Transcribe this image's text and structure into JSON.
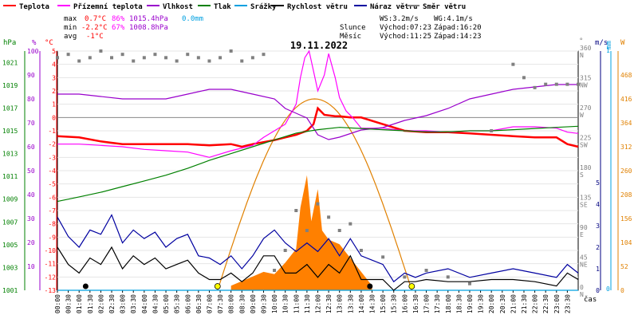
{
  "legend": [
    {
      "label": "Teplota",
      "color": "#ff0000"
    },
    {
      "label": "Přízemní teplota",
      "color": "#ff00ff"
    },
    {
      "label": "Vlhkost",
      "color": "#9900cc"
    },
    {
      "label": "Tlak",
      "color": "#008000"
    },
    {
      "label": "Srážky",
      "color": "#00a0e0"
    },
    {
      "label": "Rychlost větru",
      "color": "#000000"
    },
    {
      "label": "Náraz větru",
      "color": "#0000a0"
    },
    {
      "label": "Směr větru",
      "color": "#808080"
    }
  ],
  "stats": {
    "max_label": "max",
    "max_temp": "0.7°C",
    "max_hum": "86%",
    "max_press": "1015.4hPa",
    "max_rain": "0.0mm",
    "min_label": "min",
    "min_temp": "-2.2°C",
    "min_hum": "67%",
    "min_press": "1008.8hPa",
    "avg_label": "avg",
    "avg_temp": "-1°C"
  },
  "wind_info": {
    "ws": "WS:3.2m/s",
    "wg": "WG:4.1m/s",
    "sun_label": "Slunce",
    "sunrise": "Východ:07:23",
    "sunset": "Západ:16:20",
    "moon_label": "Měsíc",
    "moonrise": "Východ:11:25",
    "moonset": "Západ:14:23"
  },
  "date": "19.11.2022",
  "axis_units": {
    "hpa": "hPa",
    "pct": "%",
    "degc": "°C",
    "deg": "°",
    "ms": "m/s",
    "mm": "mm",
    "w": "W",
    "cas": "čas"
  },
  "chart_data": {
    "type": "line",
    "title": "19.11.2022",
    "xlabel": "čas",
    "x_ticks": [
      "00:00",
      "00:30",
      "01:00",
      "01:30",
      "02:00",
      "02:30",
      "03:00",
      "03:30",
      "04:00",
      "04:30",
      "05:00",
      "05:30",
      "06:00",
      "06:30",
      "07:00",
      "07:30",
      "08:00",
      "08:30",
      "09:00",
      "09:30",
      "10:00",
      "10:30",
      "11:00",
      "11:30",
      "12:00",
      "12:30",
      "13:00",
      "13:30",
      "14:00",
      "14:30",
      "15:00",
      "15:30",
      "16:00",
      "16:30",
      "17:00",
      "17:30",
      "18:00",
      "18:30",
      "19:00",
      "19:30",
      "20:00",
      "20:30",
      "21:00",
      "21:30",
      "22:00",
      "22:30",
      "23:00",
      "23:30"
    ],
    "axes": {
      "pressure_hpa": {
        "ticks": [
          "1001",
          "1003",
          "1005",
          "1007",
          "1009",
          "1011",
          "1013",
          "1015",
          "1017",
          "1019",
          "1021"
        ],
        "range": [
          1001,
          1022
        ]
      },
      "humidity_pct": {
        "ticks": [
          "10",
          "20",
          "30",
          "40",
          "50",
          "60",
          "70",
          "80",
          "90",
          "100"
        ],
        "range": [
          10,
          100
        ]
      },
      "temperature_c": {
        "ticks": [
          "-13",
          "-12",
          "-11",
          "-10",
          "-9",
          "-8",
          "-7",
          "-6",
          "-5",
          "-4",
          "-3",
          "-2",
          "-1",
          "0",
          "1",
          "2",
          "3",
          "4",
          "5"
        ],
        "range": [
          -13,
          5
        ]
      },
      "wind_dir_deg": {
        "ticks": [
          "0",
          "45",
          "90",
          "135",
          "180",
          "225",
          "270",
          "315",
          "360"
        ],
        "labels": [
          "N",
          "NE",
          "E",
          "SE",
          "S",
          "SW",
          "W",
          "NW",
          "N"
        ]
      },
      "wind_ms": {
        "ticks": [
          "0",
          "1",
          "2",
          "3",
          "4",
          "5"
        ]
      },
      "rain_mm": {
        "ticks": [
          "0",
          "1"
        ]
      },
      "solar_w": {
        "ticks": [
          "0",
          "52",
          "104",
          "156",
          "208",
          "260",
          "312",
          "364",
          "416",
          "468"
        ]
      }
    },
    "series": [
      {
        "name": "Teplota",
        "unit": "°C",
        "color": "#ff0000",
        "x": [
          0,
          1,
          2,
          3,
          4,
          5,
          6,
          7,
          8,
          8.5,
          9,
          10,
          10.5,
          11,
          11.5,
          11.8,
          12,
          12.3,
          12.8,
          13,
          13.5,
          14,
          15,
          16,
          17,
          18,
          19,
          20,
          21,
          22,
          23,
          23.5,
          24
        ],
        "y": [
          -1.4,
          -1.5,
          -1.8,
          -2,
          -2,
          -2,
          -2,
          -2.1,
          -2,
          -2.2,
          -2,
          -1.7,
          -1.5,
          -1.3,
          -1,
          -0.5,
          0.7,
          0.2,
          0.1,
          0.1,
          0,
          0,
          -0.5,
          -1,
          -1.1,
          -1.1,
          -1.2,
          -1.3,
          -1.4,
          -1.5,
          -1.5,
          -2,
          -2.2
        ]
      },
      {
        "name": "Přízemní teplota",
        "unit": "°C",
        "color": "#ff00ff",
        "x": [
          0,
          1,
          2,
          3,
          4,
          5,
          6,
          7,
          8,
          9,
          9.5,
          10,
          10.5,
          11,
          11.2,
          11.4,
          11.6,
          11.8,
          12,
          12.3,
          12.5,
          12.8,
          13,
          13.3,
          13.6,
          14,
          15,
          16,
          17,
          18,
          19,
          20,
          21,
          22,
          23,
          23.5,
          24
        ],
        "y": [
          -2,
          -2,
          -2.1,
          -2.2,
          -2.4,
          -2.5,
          -2.6,
          -3,
          -2.5,
          -2.1,
          -1.5,
          -1,
          -0.5,
          1,
          3,
          4.5,
          5,
          3.5,
          2,
          3.2,
          4.8,
          3,
          1.5,
          0.5,
          0,
          -0.8,
          -0.8,
          -1,
          -1,
          -1.1,
          -1,
          -1,
          -0.7,
          -0.7,
          -0.8,
          -1.1,
          -1.2
        ]
      },
      {
        "name": "Vlhkost",
        "unit": "%",
        "color": "#9900cc",
        "x": [
          0,
          1,
          2,
          3,
          4,
          5,
          6,
          7,
          8,
          9,
          10,
          10.5,
          11,
          11.5,
          12,
          12.5,
          13,
          14,
          15,
          16,
          17,
          18,
          19,
          20,
          21,
          22,
          23,
          24
        ],
        "y": [
          82,
          82,
          81,
          80,
          80,
          80,
          82,
          84,
          84,
          82,
          80,
          76,
          74,
          72,
          65,
          63,
          64,
          67,
          68,
          71,
          73,
          76,
          80,
          82,
          84,
          85,
          86,
          86
        ]
      },
      {
        "name": "Tlak",
        "unit": "hPa",
        "color": "#008000",
        "x": [
          0,
          1,
          2,
          3,
          4,
          5,
          6,
          7,
          8,
          9,
          10,
          11,
          12,
          13,
          14,
          15,
          16,
          17,
          18,
          19,
          20,
          21,
          22,
          23,
          24
        ],
        "y": [
          1008.8,
          1009.2,
          1009.6,
          1010.1,
          1010.6,
          1011.1,
          1011.7,
          1012.4,
          1013,
          1013.6,
          1014.2,
          1014.8,
          1015.1,
          1015.3,
          1015.2,
          1015.1,
          1015,
          1014.9,
          1014.9,
          1015,
          1015,
          1015.1,
          1015.2,
          1015.3,
          1015.4
        ]
      },
      {
        "name": "Srážky",
        "unit": "mm",
        "color": "#00a0e0",
        "x": [
          0,
          24
        ],
        "y": [
          0,
          0
        ]
      },
      {
        "name": "Rychlost větru",
        "unit": "m/s",
        "color": "#000000",
        "x": [
          0,
          0.5,
          1,
          1.5,
          2,
          2.5,
          3,
          3.5,
          4,
          4.5,
          5,
          5.5,
          6,
          6.5,
          7,
          7.5,
          8,
          8.5,
          9,
          9.5,
          10,
          10.5,
          11,
          11.5,
          12,
          12.5,
          13,
          13.5,
          14,
          14.5,
          15,
          15.5,
          16,
          16.5,
          17,
          18,
          19,
          20,
          21,
          22,
          23,
          23.5,
          24
        ],
        "y": [
          2,
          1.2,
          0.8,
          1.5,
          1.2,
          2,
          1,
          1.6,
          1.2,
          1.5,
          1,
          1.2,
          1.4,
          0.8,
          0.5,
          0.5,
          0.8,
          0.4,
          0.8,
          1.6,
          1.6,
          0.8,
          0.8,
          1.2,
          0.6,
          1.2,
          0.8,
          1.6,
          0.5,
          0.5,
          0.5,
          0,
          0.4,
          0.4,
          0.5,
          0.4,
          0.4,
          0.5,
          0.5,
          0.4,
          0.2,
          0.8,
          0.5
        ]
      },
      {
        "name": "Náraz větru",
        "unit": "m/s",
        "color": "#0000a0",
        "x": [
          0,
          0.5,
          1,
          1.5,
          2,
          2.5,
          3,
          3.5,
          4,
          4.5,
          5,
          5.5,
          6,
          6.5,
          7,
          7.5,
          8,
          8.5,
          9,
          9.5,
          10,
          10.5,
          11,
          11.5,
          12,
          12.5,
          13,
          13.5,
          14,
          14.5,
          15,
          15.5,
          16,
          16.5,
          17,
          18,
          19,
          20,
          21,
          22,
          23,
          23.5,
          24
        ],
        "y": [
          3.4,
          2.5,
          2,
          2.8,
          2.6,
          3.5,
          2.2,
          2.8,
          2.4,
          2.7,
          2,
          2.4,
          2.6,
          1.6,
          1.5,
          1.2,
          1.6,
          1,
          1.6,
          2.4,
          2.8,
          2.2,
          1.8,
          2.2,
          1.8,
          2.4,
          1.6,
          2.4,
          1.6,
          1.4,
          1.2,
          0.4,
          0.8,
          0.6,
          0.8,
          1,
          0.6,
          0.8,
          1,
          0.8,
          0.6,
          1.2,
          0.8
        ]
      },
      {
        "name": "Směr větru",
        "unit": "°",
        "color": "#808080",
        "x": [
          0,
          0.5,
          1,
          1.5,
          2,
          2.5,
          3,
          3.5,
          4,
          4.5,
          5,
          5.5,
          6,
          6.5,
          7,
          7.5,
          8,
          8.5,
          9,
          9.5,
          10,
          10.5,
          11,
          11.5,
          12,
          12.5,
          13,
          13.5,
          14,
          15,
          16,
          17,
          18,
          19,
          20,
          21,
          21.5,
          22,
          22.5,
          23,
          23.5,
          24
        ],
        "y": [
          350,
          355,
          345,
          350,
          360,
          350,
          355,
          345,
          350,
          355,
          350,
          345,
          355,
          350,
          345,
          350,
          360,
          345,
          350,
          355,
          30,
          60,
          120,
          90,
          130,
          110,
          90,
          100,
          60,
          50,
          20,
          30,
          20,
          10,
          240,
          340,
          320,
          305,
          310,
          310,
          310,
          310
        ]
      }
    ],
    "solar": {
      "name": "solar_radiation",
      "unit": "W",
      "sunrise_h": 7.38,
      "sunset_h": 16.33,
      "clear_sky_max": 416,
      "measured_x": [
        8,
        8.5,
        9,
        9.5,
        10,
        10.5,
        11,
        11.2,
        11.5,
        11.7,
        12,
        12.2,
        12.5,
        13,
        13.5,
        14,
        14.5
      ],
      "measured_y": [
        10,
        20,
        30,
        40,
        35,
        60,
        90,
        180,
        250,
        150,
        220,
        130,
        110,
        100,
        70,
        40,
        10
      ]
    }
  }
}
